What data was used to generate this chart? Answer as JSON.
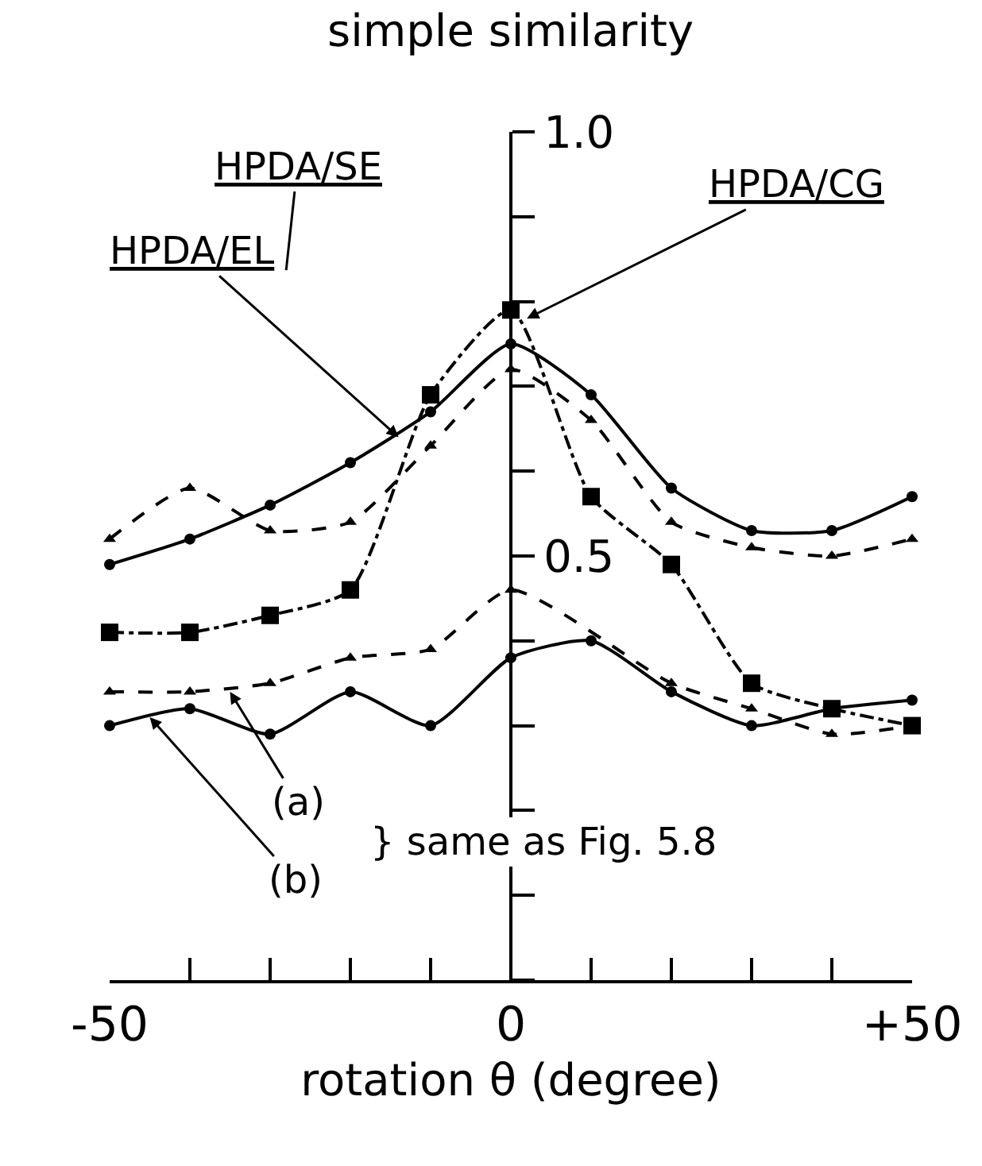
{
  "chart_data": {
    "type": "line",
    "ylabel": "simple similarity",
    "xlabel": "rotation θ (degree)",
    "xlim": [
      -50,
      50
    ],
    "xticks": [
      -50,
      {
        "value": -40,
        "label": null
      },
      {
        "value": -30,
        "label": null
      },
      {
        "value": -20,
        "label": null
      },
      {
        "value": -10,
        "label": null
      },
      0,
      {
        "value": 10,
        "label": null
      },
      {
        "value": 20,
        "label": null
      },
      {
        "value": 30,
        "label": null
      },
      {
        "value": 40,
        "label": null
      },
      {
        "value": 50,
        "label": "+50"
      }
    ],
    "ylim": [
      0,
      1.0
    ],
    "yticks": [
      {
        "value": 0,
        "label": null
      },
      {
        "value": 0.1,
        "label": null
      },
      {
        "value": 0.2,
        "label": null
      },
      {
        "value": 0.3,
        "label": null
      },
      {
        "value": 0.4,
        "label": null
      },
      {
        "value": 0.5,
        "label": "0.5"
      },
      {
        "value": 0.6,
        "label": null
      },
      {
        "value": 0.7,
        "label": null
      },
      {
        "value": 0.8,
        "label": null
      },
      {
        "value": 0.9,
        "label": null
      },
      {
        "value": 1.0,
        "label": "1.0"
      }
    ],
    "series": [
      {
        "color": "#000000",
        "line_style": "solid",
        "marker": "circle",
        "x": [
          -50,
          -40,
          -30,
          -20,
          -10,
          0,
          10,
          20,
          30,
          40,
          50
        ],
        "values": [
          0.49,
          0.52,
          0.56,
          0.61,
          0.67,
          0.75,
          0.69,
          0.58,
          0.53,
          0.53,
          0.57
        ]
      },
      {
        "color": "#000000",
        "line_style": "dashed",
        "marker": "triangle",
        "x": [
          -50,
          -40,
          -30,
          -20,
          -10,
          0,
          10,
          20,
          30,
          40,
          50
        ],
        "values": [
          0.52,
          0.58,
          0.53,
          0.54,
          0.63,
          0.72,
          0.66,
          0.54,
          0.51,
          0.5,
          0.52
        ]
      },
      {
        "color": "#000000",
        "line_style": "dashdot",
        "marker": "square",
        "x": [
          -50,
          -40,
          -30,
          -20,
          -10,
          0,
          10,
          20,
          30,
          40,
          50
        ],
        "values": [
          0.41,
          0.41,
          0.43,
          0.46,
          0.69,
          0.79,
          0.57,
          0.49,
          0.35,
          0.32,
          0.3
        ]
      },
      {
        "color": "#000000",
        "line_style": "dashed",
        "marker": "triangle",
        "x": [
          -50,
          -40,
          -30,
          -20,
          -10,
          0,
          20,
          30,
          40,
          50
        ],
        "values": [
          0.34,
          0.34,
          0.35,
          0.38,
          0.39,
          0.46,
          0.35,
          0.32,
          0.29,
          0.3
        ]
      },
      {
        "color": "#000000",
        "line_style": "solid",
        "marker": "circle",
        "x": [
          -50,
          -40,
          -30,
          -20,
          -10,
          0,
          10,
          20,
          30,
          40,
          50
        ],
        "values": [
          0.3,
          0.32,
          0.29,
          0.34,
          0.3,
          0.38,
          0.4,
          0.34,
          0.3,
          0.32,
          0.33
        ]
      }
    ],
    "annotations": [
      "HPDA/SE",
      {
        "text": "HPDA/EL",
        "x": -14,
        "y": 0.64
      },
      {
        "text": "HPDA/CG",
        "x": 2,
        "y": 0.78
      },
      {
        "text": "(a)",
        "x": -35,
        "y": 0.34
      },
      {
        "text": "(b)",
        "x": -45,
        "y": 0.31
      },
      "} same as Fig. 5.8"
    ]
  }
}
